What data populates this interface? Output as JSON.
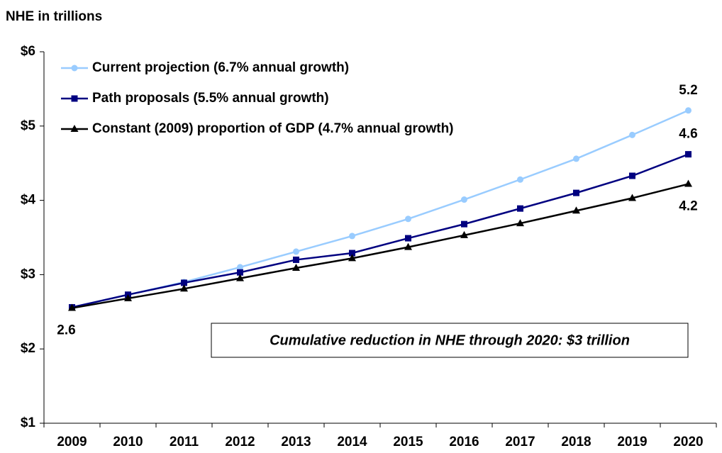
{
  "chart_data": {
    "type": "line",
    "title": "NHE in trillions",
    "categories": [
      "2009",
      "2010",
      "2011",
      "2012",
      "2013",
      "2014",
      "2015",
      "2016",
      "2017",
      "2018",
      "2019",
      "2020"
    ],
    "series": [
      {
        "name": "Current projection (6.7% annual growth)",
        "color": "#99ccff",
        "marker": "circle",
        "values": [
          2.56,
          2.73,
          2.9,
          3.1,
          3.31,
          3.52,
          3.75,
          4.01,
          4.28,
          4.56,
          4.88,
          5.21
        ],
        "value_labels": [
          null,
          null,
          null,
          null,
          null,
          null,
          null,
          null,
          null,
          null,
          null,
          "5.2"
        ]
      },
      {
        "name": "Path proposals (5.5% annual growth)",
        "color": "#000080",
        "marker": "square",
        "values": [
          2.56,
          2.73,
          2.89,
          3.03,
          3.2,
          3.29,
          3.49,
          3.68,
          3.89,
          4.1,
          4.33,
          4.62
        ],
        "value_labels": [
          null,
          null,
          null,
          null,
          null,
          null,
          null,
          null,
          null,
          null,
          null,
          "4.6"
        ]
      },
      {
        "name": "Constant (2009) proportion of GDP (4.7% annual growth)",
        "color": "#000000",
        "marker": "triangle",
        "values": [
          2.55,
          2.68,
          2.81,
          2.95,
          3.09,
          3.22,
          3.37,
          3.53,
          3.69,
          3.86,
          4.03,
          4.22
        ],
        "value_labels": [
          "2.6",
          null,
          null,
          null,
          null,
          null,
          null,
          null,
          null,
          null,
          null,
          "4.2"
        ]
      }
    ],
    "annotation": "Cumulative reduction in NHE through 2020: $3 trillion",
    "ylim": [
      1,
      6
    ],
    "yticks": [
      {
        "value": 1,
        "label": "$1"
      },
      {
        "value": 2,
        "label": "$2"
      },
      {
        "value": 3,
        "label": "$3"
      },
      {
        "value": 4,
        "label": "$4"
      },
      {
        "value": 5,
        "label": "$5"
      },
      {
        "value": 6,
        "label": "$6"
      }
    ],
    "legend": "top-left",
    "grid": false
  }
}
